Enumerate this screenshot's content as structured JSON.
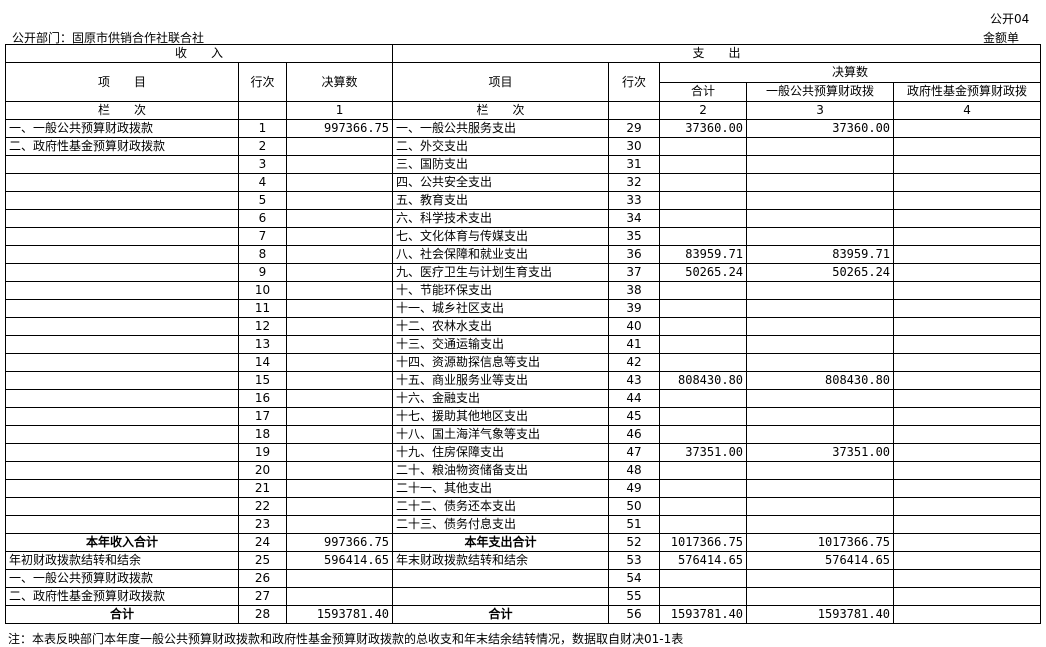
{
  "header": {
    "form_code": "公开04",
    "department": "公开部门：固原市供销合作社联合社",
    "unit": "金额单"
  },
  "columns": {
    "income_title": "收　　入",
    "expense_title": "支　　出",
    "item": "项　　目",
    "item_right": "项目",
    "row_no": "行次",
    "final_amount": "决算数",
    "total": "合计",
    "general_budget": "一般公共预算财政拨",
    "fund_budget": "政府性基金预算财政拨",
    "col_index_label": "栏　　次",
    "col1": "1",
    "col2": "2",
    "col3": "3",
    "col4": "4"
  },
  "rows": [
    {
      "li": "一、一般公共预算财政拨款",
      "ln": "1",
      "lv": "997366.75",
      "ri": "一、一般公共服务支出",
      "rn": "29",
      "t": "37360.00",
      "g": "37360.00",
      "f": ""
    },
    {
      "li": "二、政府性基金预算财政拨款",
      "ln": "2",
      "lv": "",
      "ri": "二、外交支出",
      "rn": "30",
      "t": "",
      "g": "",
      "f": ""
    },
    {
      "li": "",
      "ln": "3",
      "lv": "",
      "ri": "三、国防支出",
      "rn": "31",
      "t": "",
      "g": "",
      "f": ""
    },
    {
      "li": "",
      "ln": "4",
      "lv": "",
      "ri": "四、公共安全支出",
      "rn": "32",
      "t": "",
      "g": "",
      "f": ""
    },
    {
      "li": "",
      "ln": "5",
      "lv": "",
      "ri": "五、教育支出",
      "rn": "33",
      "t": "",
      "g": "",
      "f": ""
    },
    {
      "li": "",
      "ln": "6",
      "lv": "",
      "ri": "六、科学技术支出",
      "rn": "34",
      "t": "",
      "g": "",
      "f": ""
    },
    {
      "li": "",
      "ln": "7",
      "lv": "",
      "ri": "七、文化体育与传媒支出",
      "rn": "35",
      "t": "",
      "g": "",
      "f": ""
    },
    {
      "li": "",
      "ln": "8",
      "lv": "",
      "ri": "八、社会保障和就业支出",
      "rn": "36",
      "t": "83959.71",
      "g": "83959.71",
      "f": ""
    },
    {
      "li": "",
      "ln": "9",
      "lv": "",
      "ri": "九、医疗卫生与计划生育支出",
      "rn": "37",
      "t": "50265.24",
      "g": "50265.24",
      "f": ""
    },
    {
      "li": "",
      "ln": "10",
      "lv": "",
      "ri": "十、节能环保支出",
      "rn": "38",
      "t": "",
      "g": "",
      "f": ""
    },
    {
      "li": "",
      "ln": "11",
      "lv": "",
      "ri": "十一、城乡社区支出",
      "rn": "39",
      "t": "",
      "g": "",
      "f": ""
    },
    {
      "li": "",
      "ln": "12",
      "lv": "",
      "ri": "十二、农林水支出",
      "rn": "40",
      "t": "",
      "g": "",
      "f": ""
    },
    {
      "li": "",
      "ln": "13",
      "lv": "",
      "ri": "十三、交通运输支出",
      "rn": "41",
      "t": "",
      "g": "",
      "f": ""
    },
    {
      "li": "",
      "ln": "14",
      "lv": "",
      "ri": "十四、资源勘探信息等支出",
      "rn": "42",
      "t": "",
      "g": "",
      "f": ""
    },
    {
      "li": "",
      "ln": "15",
      "lv": "",
      "ri": "十五、商业服务业等支出",
      "rn": "43",
      "t": "808430.80",
      "g": "808430.80",
      "f": ""
    },
    {
      "li": "",
      "ln": "16",
      "lv": "",
      "ri": "十六、金融支出",
      "rn": "44",
      "t": "",
      "g": "",
      "f": ""
    },
    {
      "li": "",
      "ln": "17",
      "lv": "",
      "ri": "十七、援助其他地区支出",
      "rn": "45",
      "t": "",
      "g": "",
      "f": ""
    },
    {
      "li": "",
      "ln": "18",
      "lv": "",
      "ri": "十八、国土海洋气象等支出",
      "rn": "46",
      "t": "",
      "g": "",
      "f": ""
    },
    {
      "li": "",
      "ln": "19",
      "lv": "",
      "ri": "十九、住房保障支出",
      "rn": "47",
      "t": "37351.00",
      "g": "37351.00",
      "f": ""
    },
    {
      "li": "",
      "ln": "20",
      "lv": "",
      "ri": "二十、粮油物资储备支出",
      "rn": "48",
      "t": "",
      "g": "",
      "f": ""
    },
    {
      "li": "",
      "ln": "21",
      "lv": "",
      "ri": "二十一、其他支出",
      "rn": "49",
      "t": "",
      "g": "",
      "f": ""
    },
    {
      "li": "",
      "ln": "22",
      "lv": "",
      "ri": "二十二、债务还本支出",
      "rn": "50",
      "t": "",
      "g": "",
      "f": ""
    },
    {
      "li": "",
      "ln": "23",
      "lv": "",
      "ri": "二十三、债务付息支出",
      "rn": "51",
      "t": "",
      "g": "",
      "f": ""
    },
    {
      "li": "本年收入合计",
      "ln": "24",
      "lv": "997366.75",
      "ri": "本年支出合计",
      "rn": "52",
      "t": "1017366.75",
      "g": "1017366.75",
      "f": "",
      "bold": true
    },
    {
      "li": "年初财政拨款结转和结余",
      "ln": "25",
      "lv": "596414.65",
      "ri": "年末财政拨款结转和结余",
      "rn": "53",
      "t": "576414.65",
      "g": "576414.65",
      "f": ""
    },
    {
      "li": "一、一般公共预算财政拨款",
      "ln": "26",
      "lv": "",
      "ri": "",
      "rn": "54",
      "t": "",
      "g": "",
      "f": ""
    },
    {
      "li": "二、政府性基金预算财政拨款",
      "ln": "27",
      "lv": "",
      "ri": "",
      "rn": "55",
      "t": "",
      "g": "",
      "f": ""
    },
    {
      "li": "合计",
      "ln": "28",
      "lv": "1593781.40",
      "ri": "合计",
      "rn": "56",
      "t": "1593781.40",
      "g": "1593781.40",
      "f": "",
      "bold": true
    }
  ],
  "note": "注：本表反映部门本年度一般公共预算财政拨款和政府性基金预算财政拨款的总收支和年末结余结转情况，数据取自财决01-1表"
}
